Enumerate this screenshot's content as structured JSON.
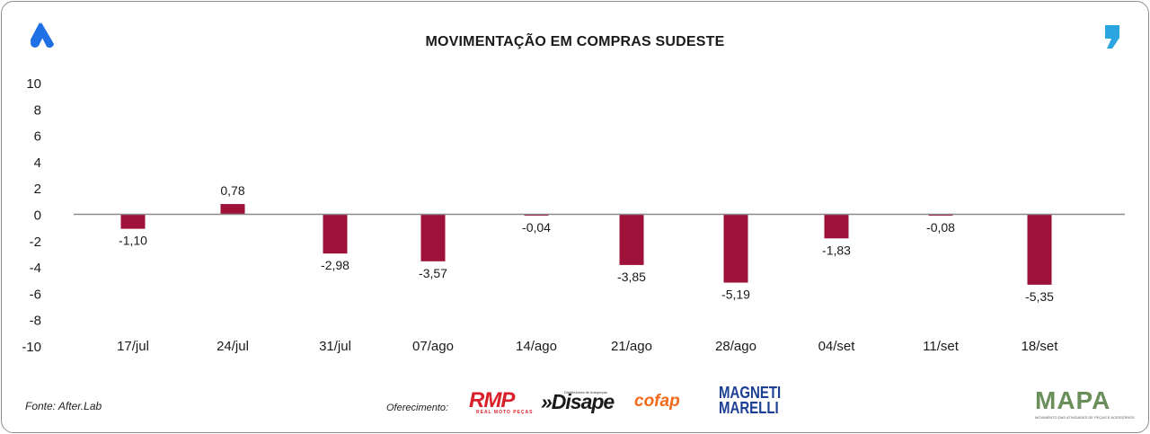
{
  "header": {
    "title": "MOVIMENTAÇÃO EM COMPRAS SUDESTE"
  },
  "footer": {
    "source": "Fonte: After.Lab",
    "sponsor_label": "Oferecimento:",
    "sponsors": {
      "rmp": "RMP",
      "rmp_sub": "REAL MOTO PEÇAS",
      "disape": "»Disape",
      "disape_sub": "Distribuidora de Autopeças",
      "cofap": "cofap",
      "magneti": "MAGNETI MARELLI",
      "mapa": "MAPA",
      "mapa_sub": "MOVIMENTO DAS ATIVIDADES DE PEÇAS E ACESSÓRIOS"
    }
  },
  "colors": {
    "bar": "#9e1239",
    "axis": "#8a8a8a",
    "logo_blue": "#1f6fe5",
    "quote_blue": "#2aa5e0"
  },
  "chart_data": {
    "type": "bar",
    "title": "MOVIMENTAÇÃO EM COMPRAS SUDESTE",
    "categories": [
      "17/jul",
      "24/jul",
      "31/jul",
      "07/ago",
      "14/ago",
      "21/ago",
      "28/ago",
      "04/set",
      "11/set",
      "18/set"
    ],
    "values": [
      -1.1,
      0.78,
      -2.98,
      -3.57,
      -0.04,
      -3.85,
      -5.19,
      -1.83,
      -0.08,
      -5.35
    ],
    "value_labels": [
      "-1,10",
      "0,78",
      "-2,98",
      "-3,57",
      "-0,04",
      "-3,85",
      "-5,19",
      "-1,83",
      "-0,08",
      "-5,35"
    ],
    "y_ticks": [
      10,
      8,
      6,
      4,
      2,
      0,
      -2,
      -4,
      -6,
      -8,
      -10
    ],
    "ylim": [
      -10,
      10
    ],
    "grid": false,
    "legend": "none"
  }
}
